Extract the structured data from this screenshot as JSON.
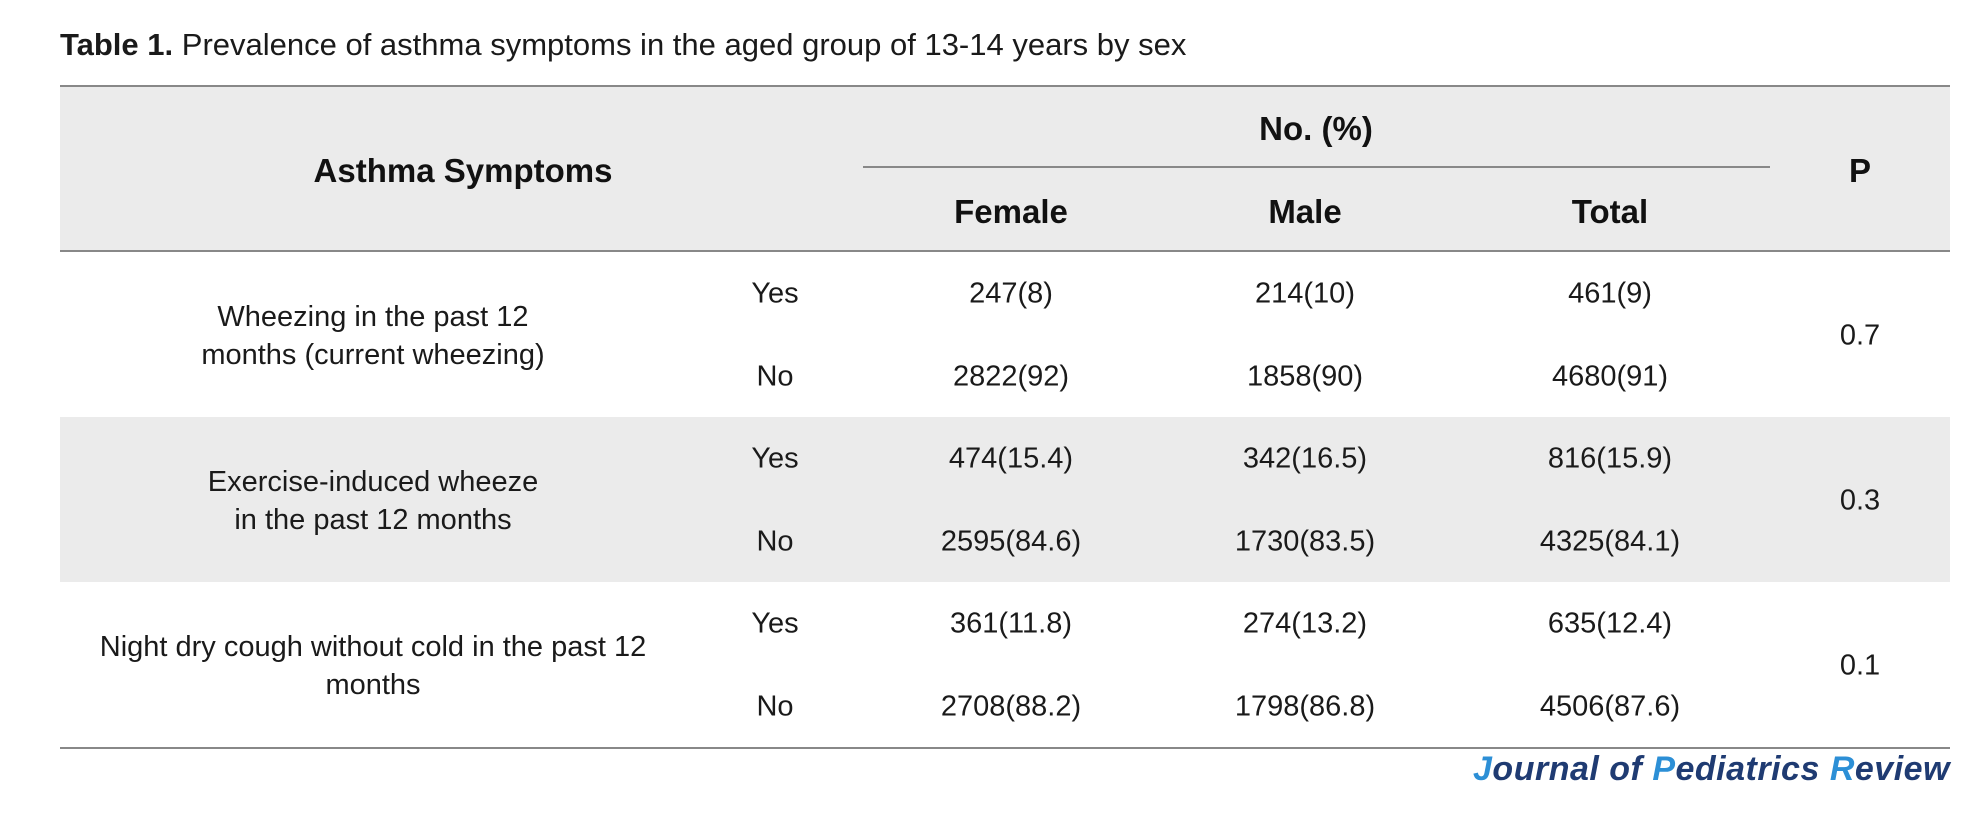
{
  "caption": {
    "label": "Table 1.",
    "text": "Prevalence of asthma symptoms in the aged group of 13-14 years by sex"
  },
  "header": {
    "symptoms": "Asthma Symptoms",
    "group": "No. (%)",
    "female": "Female",
    "male": "Male",
    "total": "Total",
    "p": "P"
  },
  "rows": [
    {
      "symptom_line1": "Wheezing in the past 12",
      "symptom_line2": "months (current wheezing)",
      "yes": {
        "label": "Yes",
        "female": "247(8)",
        "male": "214(10)",
        "total": "461(9)"
      },
      "no": {
        "label": "No",
        "female": "2822(92)",
        "male": "1858(90)",
        "total": "4680(91)"
      },
      "p": "0.7"
    },
    {
      "symptom_line1": "Exercise-induced wheeze",
      "symptom_line2": "in the past 12 months",
      "yes": {
        "label": "Yes",
        "female": "474(15.4)",
        "male": "342(16.5)",
        "total": "816(15.9)"
      },
      "no": {
        "label": "No",
        "female": "2595(84.6)",
        "male": "1730(83.5)",
        "total": "4325(84.1)"
      },
      "p": "0.3"
    },
    {
      "symptom_line1": "Night dry cough without cold in the past 12",
      "symptom_line2": "months",
      "yes": {
        "label": "Yes",
        "female": "361(11.8)",
        "male": "274(13.2)",
        "total": "635(12.4)"
      },
      "no": {
        "label": "No",
        "female": "2708(88.2)",
        "male": "1798(86.8)",
        "total": "4506(87.6)"
      },
      "p": "0.1"
    }
  ],
  "footer": {
    "journal_j": "J",
    "journal_1": "ournal of ",
    "journal_p": "P",
    "journal_2": "ediatrics ",
    "journal_r": "R",
    "journal_3": "eview"
  }
}
